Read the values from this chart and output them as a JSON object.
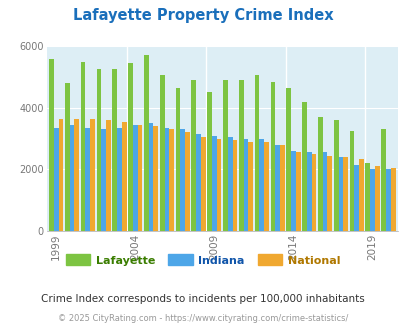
{
  "title": "Lafayette Property Crime Index",
  "title_color": "#1a6fbb",
  "subtitle": "Crime Index corresponds to incidents per 100,000 inhabitants",
  "footer": "© 2025 CityRating.com - https://www.cityrating.com/crime-statistics/",
  "years": [
    1999,
    2000,
    2001,
    2002,
    2003,
    2004,
    2005,
    2006,
    2007,
    2008,
    2009,
    2010,
    2011,
    2012,
    2013,
    2014,
    2015,
    2016,
    2017,
    2018,
    2019,
    2020
  ],
  "lafayette": [
    5600,
    4800,
    5500,
    5250,
    5250,
    5450,
    5700,
    5050,
    4650,
    4900,
    4500,
    4900,
    4900,
    5050,
    4850,
    4650,
    4200,
    3700,
    3600,
    3250,
    2200,
    3300
  ],
  "indiana": [
    3350,
    3450,
    3350,
    3300,
    3350,
    3450,
    3500,
    3350,
    3300,
    3150,
    3100,
    3050,
    3000,
    3000,
    2800,
    2600,
    2550,
    2550,
    2400,
    2150,
    2000,
    2000
  ],
  "national": [
    3650,
    3650,
    3650,
    3600,
    3550,
    3450,
    3400,
    3300,
    3200,
    3050,
    3000,
    2950,
    2900,
    2900,
    2800,
    2550,
    2500,
    2450,
    2400,
    2350,
    2100,
    2050
  ],
  "lafayette_color": "#7dc442",
  "indiana_color": "#4da6e8",
  "national_color": "#f0a830",
  "bg_color": "#ddeef5",
  "ylim": [
    0,
    6000
  ],
  "yticks": [
    0,
    2000,
    4000,
    6000
  ],
  "xtick_years": [
    1999,
    2004,
    2009,
    2014,
    2019
  ],
  "bar_width": 0.3,
  "figsize": [
    4.06,
    3.3
  ],
  "dpi": 100
}
